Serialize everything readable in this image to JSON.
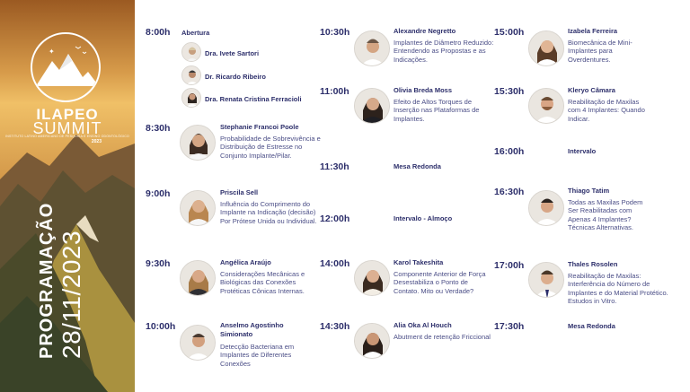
{
  "banner": {
    "brand_name": "ILAPEO",
    "brand_sub": "SUMMIT",
    "brand_tag": "INSTITUTO LATINO AMERICANO DE PESQUISA E ENSINO ODONTOLÓGICO",
    "brand_year": "2023",
    "vertical_title": "PROGRAMAÇÃO",
    "vertical_date": "28/11/2023"
  },
  "schedule": {
    "col1": [
      {
        "time": "8:00h",
        "label": "Abertura",
        "speakers": [
          "Dra. Ivete Sartori",
          "Dr. Ricardo Ribeiro",
          "Dra. Renata Cristina Ferracioli"
        ]
      },
      {
        "time": "8:30h",
        "name": "Stephanie Francoi Poole",
        "desc": "Probabilidade de Sobrevivência e Distribuição de Estresse no Conjunto Implante/Pilar."
      },
      {
        "time": "9:00h",
        "name": "Priscila Sell",
        "desc": "Influência do Comprimento do Implante na Indicação (decisão) Por Prótese Unida ou Individual."
      },
      {
        "time": "9:30h",
        "name": "Angélica Araújo",
        "desc": "Considerações Mecânicas e Biológicas das Conexões Protéticas Cônicas Internas."
      },
      {
        "time": "10:00h",
        "name": "Anselmo Agostinho Simionato",
        "desc": "Detecção Bacteriana em Implantes de Diferentes Conexões"
      }
    ],
    "col2": [
      {
        "time": "10:30h",
        "name": "Alexandre Negretto",
        "desc": "Implantes de Diâmetro Reduzido: Entendendo as Propostas e as Indicações."
      },
      {
        "time": "11:00h",
        "name": "Olivia Breda Moss",
        "desc": "Efeito de Altos Torques de Inserção nas Plataformas de Implantes."
      },
      {
        "time": "11:30h",
        "label": "Mesa Redonda"
      },
      {
        "time": "12:00h",
        "label": "Intervalo - Almoço"
      },
      {
        "time": "14:00h",
        "name": "Karol Takeshita",
        "desc": "Componente Anterior de Força Desestabiliza o Ponto de Contato. Mito ou Verdade?"
      },
      {
        "time": "14:30h",
        "name": "Alia Oka Al Houch",
        "desc": "Abutment de retenção Friccional"
      }
    ],
    "col3": [
      {
        "time": "15:00h",
        "name": "Izabela Ferreira",
        "desc": "Biomecânica de Mini-Implantes para Overdentures."
      },
      {
        "time": "15:30h",
        "name": "Kleryo Câmara",
        "desc": "Reabilitação de Maxilas com 4 Implantes: Quando Indicar."
      },
      {
        "time": "16:00h",
        "label": "Intervalo"
      },
      {
        "time": "16:30h",
        "name": "Thiago Tatim",
        "desc": "Todas as Maxilas Podem Ser Reabilitadas com Apenas 4 Implantes? Técnicas Alternativas."
      },
      {
        "time": "17:00h",
        "name": "Thales Rosolen",
        "desc": "Reabilitação de Maxilas: Interferência do Número de Implantes e do Material Protético. Estudos in Vitro."
      },
      {
        "time": "17:30h",
        "label": "Mesa Redonda"
      }
    ]
  },
  "colors": {
    "navy": "#2d2f6b",
    "desc": "#4a4d86",
    "divider": "#d8d8e6"
  }
}
